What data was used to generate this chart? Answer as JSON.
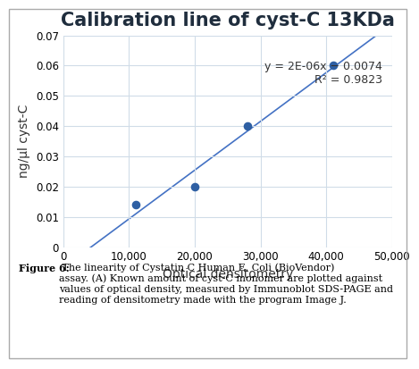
{
  "title": "Calibration line of cyst-C 13KDa",
  "xlabel": "Optical densitometry",
  "ylabel": "ng/µl cyst-C",
  "x_data": [
    11000,
    20000,
    28000,
    41000
  ],
  "y_data": [
    0.014,
    0.02,
    0.04,
    0.06
  ],
  "xlim": [
    0,
    50000
  ],
  "ylim": [
    0,
    0.07
  ],
  "x_ticks": [
    0,
    10000,
    20000,
    30000,
    40000,
    50000
  ],
  "y_ticks": [
    0,
    0.01,
    0.02,
    0.03,
    0.04,
    0.05,
    0.06,
    0.07
  ],
  "equation": "y = 2E-06x − 0.0074",
  "r_squared": "R² = 0.9823",
  "dot_color": "#2e5fa3",
  "line_color": "#4472c4",
  "grid_color": "#d0dce8",
  "title_color": "#1f2d3d",
  "title_fontsize": 15,
  "axis_label_fontsize": 10,
  "tick_fontsize": 8.5,
  "annotation_fontsize": 9,
  "caption_bold": "Figure 6:",
  "caption_text": " The linearity of Cystatin C Human ",
  "caption_italic": "E. Coli",
  "caption_rest": " (BioVendor)\nassay. (A) Known amount of cyst-C monomer are plotted against\nvalues of optical density, measured by Immunoblot SDS-PAGE and\nreading of densitometry made with the program Image J.",
  "figure_bg": "#ffffff",
  "plot_bg": "#ffffff"
}
